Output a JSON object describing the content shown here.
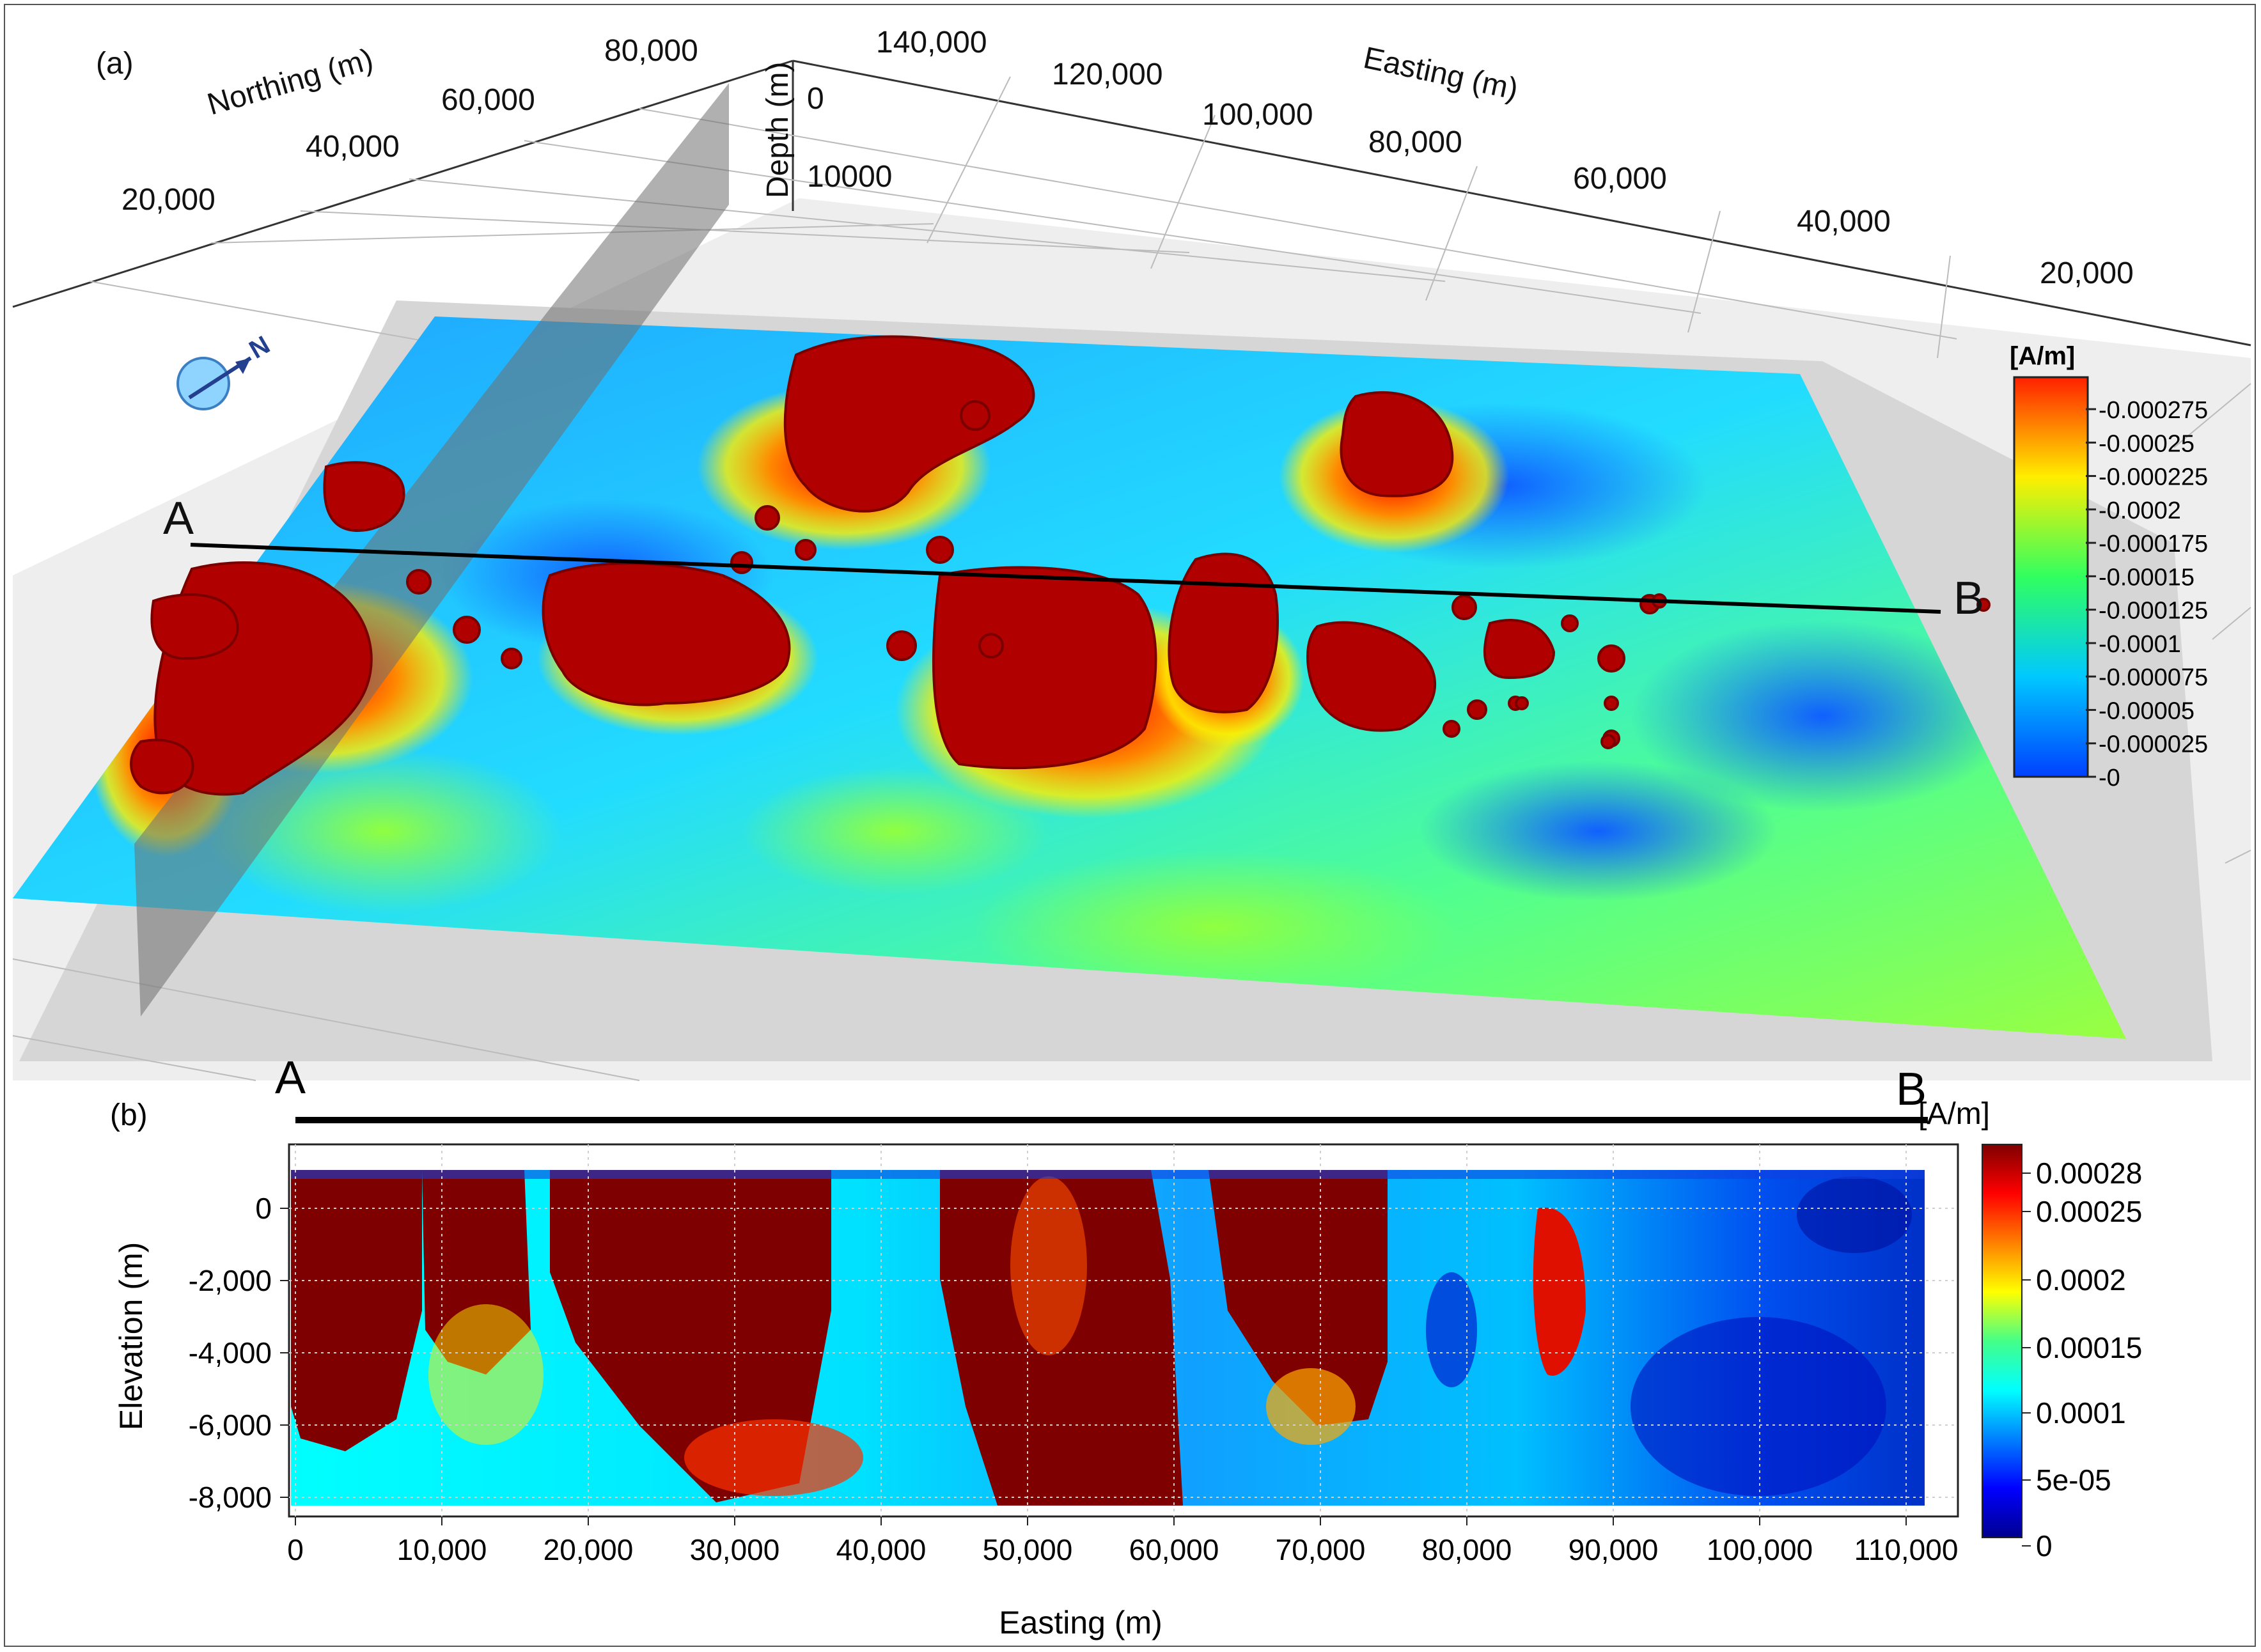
{
  "panel_a": {
    "label": "(a)",
    "northing_title": "Northing (m)",
    "northing_ticks": [
      "20,000",
      "40,000",
      "60,000",
      "80,000"
    ],
    "easting_title": "Easting (m)",
    "easting_ticks": [
      "140,000",
      "120,000",
      "100,000",
      "80,000",
      "60,000",
      "40,000",
      "20,000"
    ],
    "depth_title": "Depth (m)",
    "depth_ticks": [
      "0",
      "10000"
    ],
    "compass_label": "N",
    "section_start": "A",
    "section_end": "B",
    "colorbar_unit": "[A/m]",
    "colorbar_ticks": [
      "0.000275",
      "0.00025",
      "0.000225",
      "0.0002",
      "0.000175",
      "0.00015",
      "0.000125",
      "0.0001",
      "0.000075",
      "0.00005",
      "0.000025",
      "0"
    ]
  },
  "panel_b": {
    "label": "(b)",
    "section_start": "A",
    "section_end": "B",
    "xlabel": "Easting (m)",
    "ylabel": "Elevation (m)",
    "xticks": [
      "0",
      "10,000",
      "20,000",
      "30,000",
      "40,000",
      "50,000",
      "60,000",
      "70,000",
      "80,000",
      "90,000",
      "100,000",
      "110,000"
    ],
    "yticks": [
      "0",
      "-2,000",
      "-4,000",
      "-6,000",
      "-8,000"
    ],
    "colorbar_unit": "[A/m]",
    "colorbar_ticks": [
      "0.00028",
      "0.00025",
      "0.0002",
      "0.00015",
      "0.0001",
      "5e-05",
      "0"
    ]
  },
  "colors": {
    "anomaly_body": "#b00000",
    "jet_low": "#00008f",
    "jet_high": "#7f0000"
  }
}
